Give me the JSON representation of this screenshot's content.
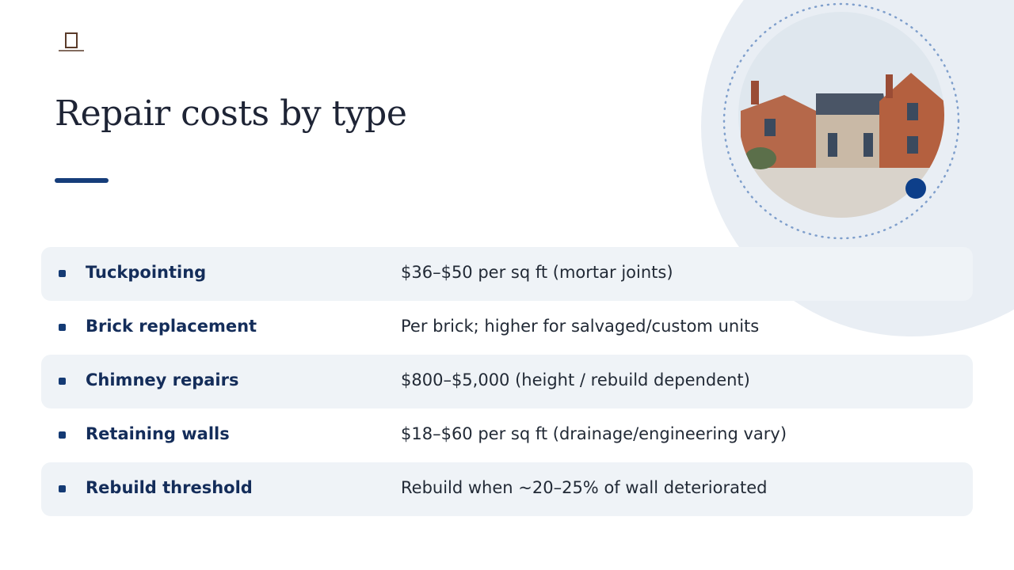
{
  "header": {
    "title": "Repair costs by type"
  },
  "table": {
    "rows": [
      [
        "Tuckpointing",
        "$36–$50 per sq ft (mortar joints)"
      ],
      [
        "Brick replacement",
        "Per brick; higher for salvaged/custom units"
      ],
      [
        "Chimney repairs",
        "$800–$5,000 (height / rebuild dependent)"
      ],
      [
        "Retaining walls",
        "$18–$60 per sq ft (drainage/engineering vary)"
      ],
      [
        "Rebuild threshold",
        "Rebuild when ~20–25% of wall deteriorated"
      ]
    ]
  }
}
